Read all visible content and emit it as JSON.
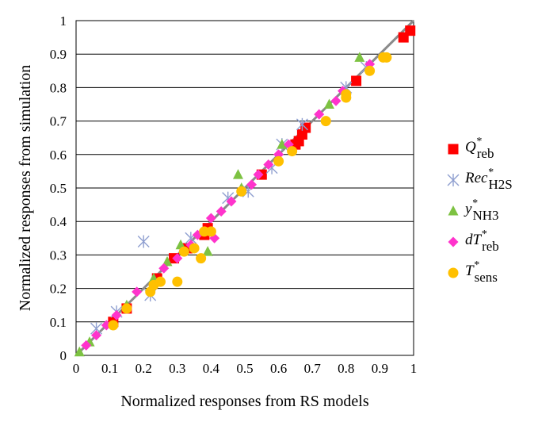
{
  "chart_data": {
    "type": "scatter",
    "xlabel": "Normalized responses from RS models",
    "ylabel": "Normalized responses from simulation",
    "xlim": [
      0,
      1
    ],
    "ylim": [
      0,
      1
    ],
    "x_ticks": [
      "0",
      "0.1",
      "0.2",
      "0.3",
      "0.4",
      "0.5",
      "0.6",
      "0.7",
      "0.8",
      "0.9",
      "1"
    ],
    "y_ticks": [
      "0",
      "0.1",
      "0.2",
      "0.3",
      "0.4",
      "0.5",
      "0.6",
      "0.7",
      "0.8",
      "0.9",
      "1"
    ],
    "grid": "horizontal",
    "legend_position": "right",
    "parity_line": [
      [
        0,
        0
      ],
      [
        1,
        1
      ]
    ],
    "series": [
      {
        "name": "Q*reb",
        "legend": {
          "main": "Q",
          "sup": "*",
          "sub": "reb"
        },
        "marker": "square",
        "color": "#ff0000",
        "points": [
          [
            0.11,
            0.1
          ],
          [
            0.15,
            0.14
          ],
          [
            0.24,
            0.23
          ],
          [
            0.29,
            0.29
          ],
          [
            0.33,
            0.32
          ],
          [
            0.38,
            0.36
          ],
          [
            0.39,
            0.38
          ],
          [
            0.55,
            0.54
          ],
          [
            0.65,
            0.63
          ],
          [
            0.66,
            0.64
          ],
          [
            0.67,
            0.66
          ],
          [
            0.68,
            0.68
          ],
          [
            0.83,
            0.82
          ],
          [
            0.97,
            0.95
          ],
          [
            0.99,
            0.97
          ]
        ]
      },
      {
        "name": "Rec*H2S",
        "legend": {
          "main": "Rec",
          "sup": "*",
          "sub": "H2S"
        },
        "marker": "asterisk",
        "color": "#8f9fd0",
        "points": [
          [
            0.06,
            0.08
          ],
          [
            0.12,
            0.13
          ],
          [
            0.2,
            0.34
          ],
          [
            0.22,
            0.18
          ],
          [
            0.34,
            0.35
          ],
          [
            0.45,
            0.47
          ],
          [
            0.51,
            0.49
          ],
          [
            0.58,
            0.56
          ],
          [
            0.61,
            0.63
          ],
          [
            0.67,
            0.69
          ],
          [
            0.8,
            0.8
          ],
          [
            0.86,
            0.86
          ]
        ]
      },
      {
        "name": "y*NH3",
        "legend": {
          "main": "y",
          "sup": "*",
          "sub": "NH3"
        },
        "marker": "triangle",
        "color": "#7dc242",
        "points": [
          [
            0.01,
            0.01
          ],
          [
            0.04,
            0.04
          ],
          [
            0.15,
            0.15
          ],
          [
            0.23,
            0.23
          ],
          [
            0.27,
            0.28
          ],
          [
            0.31,
            0.33
          ],
          [
            0.39,
            0.31
          ],
          [
            0.48,
            0.54
          ],
          [
            0.49,
            0.5
          ],
          [
            0.61,
            0.63
          ],
          [
            0.75,
            0.75
          ],
          [
            0.84,
            0.89
          ]
        ]
      },
      {
        "name": "dT*reb",
        "legend": {
          "main": "dT",
          "sup": "*",
          "sub": "reb"
        },
        "marker": "diamond",
        "color": "#ff33cc",
        "points": [
          [
            0.03,
            0.03
          ],
          [
            0.06,
            0.06
          ],
          [
            0.09,
            0.09
          ],
          [
            0.12,
            0.12
          ],
          [
            0.18,
            0.19
          ],
          [
            0.26,
            0.26
          ],
          [
            0.3,
            0.29
          ],
          [
            0.34,
            0.33
          ],
          [
            0.36,
            0.36
          ],
          [
            0.4,
            0.41
          ],
          [
            0.41,
            0.35
          ],
          [
            0.43,
            0.43
          ],
          [
            0.46,
            0.46
          ],
          [
            0.52,
            0.51
          ],
          [
            0.54,
            0.54
          ],
          [
            0.57,
            0.57
          ],
          [
            0.6,
            0.6
          ],
          [
            0.63,
            0.63
          ],
          [
            0.72,
            0.72
          ],
          [
            0.77,
            0.76
          ],
          [
            0.79,
            0.79
          ],
          [
            0.87,
            0.87
          ],
          [
            0.91,
            0.89
          ]
        ]
      },
      {
        "name": "T*sens",
        "legend": {
          "main": "T",
          "sup": "*",
          "sub": "sens"
        },
        "marker": "circle",
        "color": "#ffc000",
        "points": [
          [
            0.11,
            0.09
          ],
          [
            0.15,
            0.14
          ],
          [
            0.22,
            0.19
          ],
          [
            0.23,
            0.21
          ],
          [
            0.25,
            0.22
          ],
          [
            0.3,
            0.22
          ],
          [
            0.32,
            0.31
          ],
          [
            0.35,
            0.32
          ],
          [
            0.37,
            0.29
          ],
          [
            0.38,
            0.37
          ],
          [
            0.4,
            0.37
          ],
          [
            0.49,
            0.49
          ],
          [
            0.6,
            0.58
          ],
          [
            0.64,
            0.61
          ],
          [
            0.74,
            0.7
          ],
          [
            0.8,
            0.77
          ],
          [
            0.8,
            0.78
          ],
          [
            0.87,
            0.85
          ],
          [
            0.91,
            0.89
          ],
          [
            0.92,
            0.89
          ]
        ]
      }
    ]
  }
}
